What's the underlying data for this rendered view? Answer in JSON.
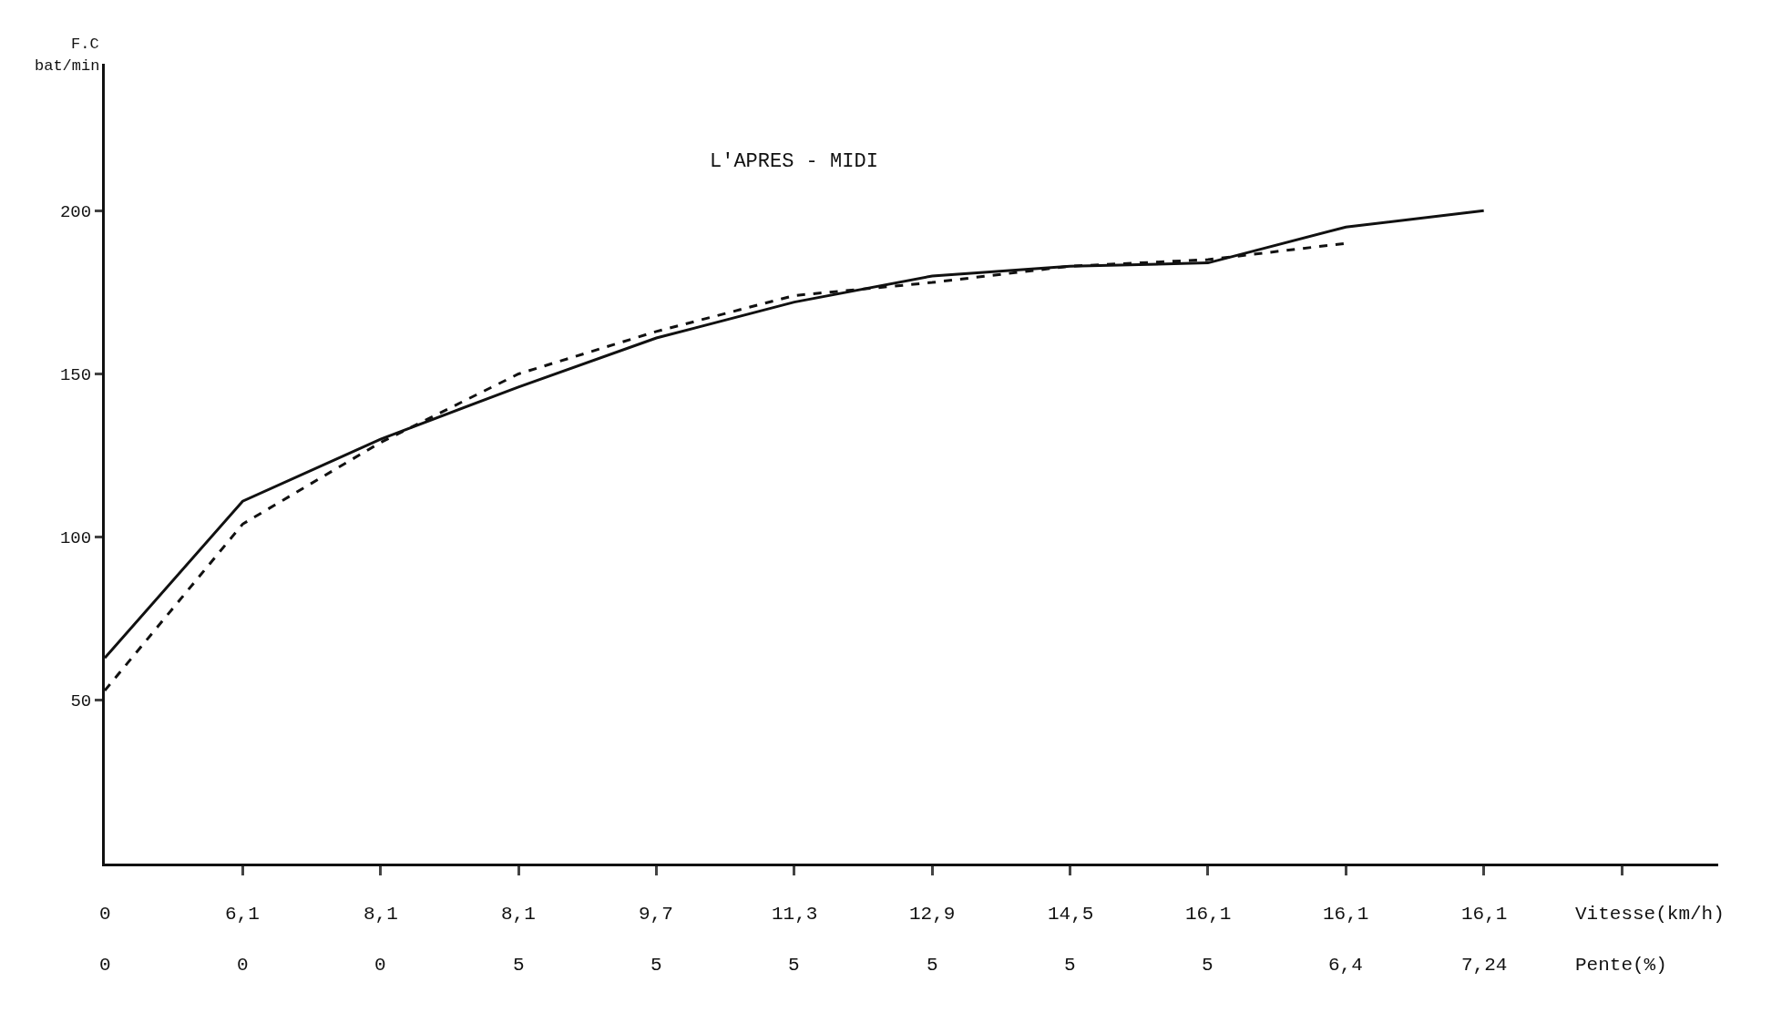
{
  "chart_data": {
    "type": "line",
    "title": "L'APRES - MIDI",
    "ylabel": "F.C\nbat/min",
    "xlabel": "Vitesse(km/h)\nPente(%)",
    "categories": [
      "0\n0",
      "6,1\n0",
      "8,1\n0",
      "8,1\n5",
      "9,7\n5",
      "11,3\n5",
      "12,9\n5",
      "14,5\n5",
      "16,1\n5",
      "16,1\n6,4",
      "16,1\n7,24",
      null
    ],
    "series": [
      {
        "color": "#111111",
        "line_style": "solid",
        "values": [
          63,
          111,
          130,
          146,
          161,
          172,
          180,
          183,
          184,
          195,
          200,
          null
        ]
      },
      {
        "color": "#111111",
        "line_style": "dashed",
        "values": [
          53,
          104,
          129,
          150,
          163,
          174,
          178,
          183,
          185,
          190,
          null,
          null
        ]
      }
    ],
    "ylim": [
      0,
      245
    ],
    "yticks": [
      50,
      100,
      150,
      200
    ],
    "marker": "none"
  }
}
